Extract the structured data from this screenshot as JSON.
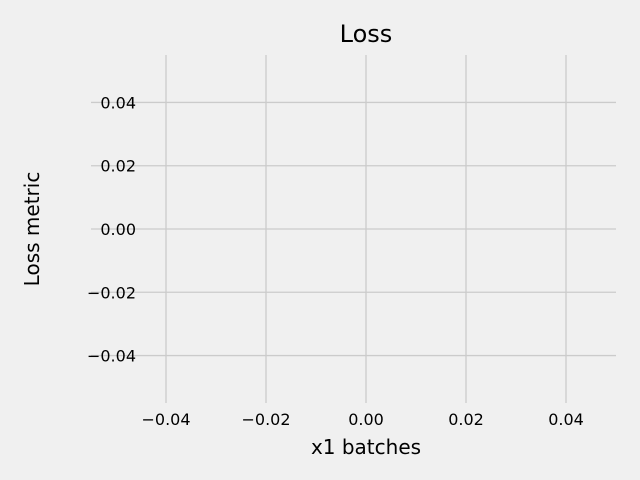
{
  "chart_data": {
    "type": "line",
    "title": "Loss",
    "xlabel": "x1 batches",
    "ylabel": "Loss metric",
    "series": [],
    "xlim": [
      -0.055,
      0.055
    ],
    "ylim": [
      -0.055,
      0.055
    ],
    "xticks": [
      -0.04,
      -0.02,
      0.0,
      0.02,
      0.04
    ],
    "yticks": [
      -0.04,
      -0.02,
      0.0,
      0.02,
      0.04
    ],
    "xtick_labels": [
      "−0.04",
      "−0.02",
      "0.00",
      "0.02",
      "0.04"
    ],
    "ytick_labels": [
      "−0.04",
      "−0.02",
      "0.00",
      "0.02",
      "0.04"
    ],
    "grid": true,
    "style": "fivethirtyeight",
    "colors": {
      "background": "#f0f0f0",
      "grid": "#cbcbcb",
      "text": "#000000"
    }
  }
}
